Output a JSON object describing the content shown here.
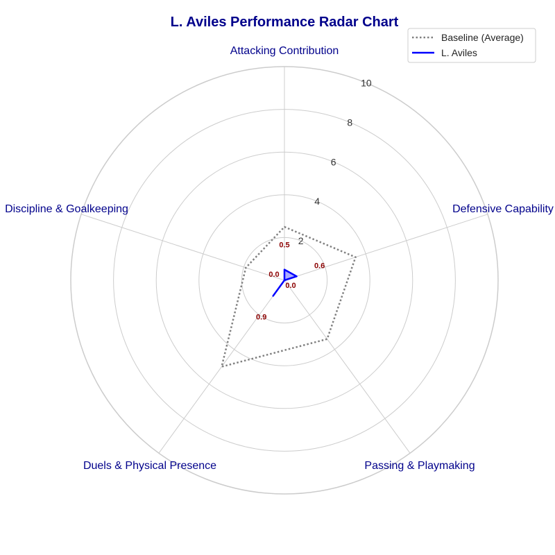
{
  "chart_data": {
    "type": "radar",
    "title": "L. Aviles Performance Radar Chart",
    "categories": [
      "Attacking Contribution",
      "Defensive Capability",
      "Passing & Playmaking",
      "Duels & Physical Presence",
      "Discipline & Goalkeeping"
    ],
    "rlim": [
      0,
      10
    ],
    "rticks": [
      2,
      4,
      6,
      8,
      10
    ],
    "grid": true,
    "legend_position": "top-right",
    "series": [
      {
        "name": "Baseline (Average)",
        "values": [
          2.5,
          3.5,
          3.4,
          5.0,
          1.9
        ],
        "style": "dotted",
        "color": "#808080"
      },
      {
        "name": "L. Aviles",
        "values": [
          0.5,
          0.6,
          0.0,
          0.9,
          0.0
        ],
        "style": "solid",
        "color": "#0000ff",
        "fill": "#6666ff",
        "value_labels": [
          "0.5",
          "0.6",
          "0.0",
          "0.9",
          "0.0"
        ]
      }
    ],
    "label_color": "#8b0000",
    "category_label_color": "#00008b"
  }
}
